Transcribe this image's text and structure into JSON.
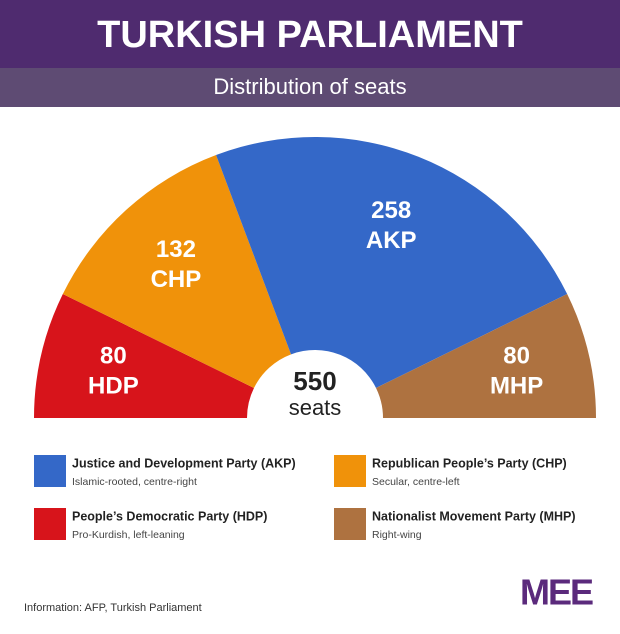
{
  "chart_data": {
    "type": "semicircle",
    "title": "TURKISH PARLIAMENT",
    "subtitle": "Distribution of seats",
    "total": 550,
    "total_label": "seats",
    "series": [
      {
        "name": "People’s Democratic Party (HDP)",
        "short": "HDP",
        "description": "Pro-Kurdish, left-leaning",
        "color": "#d7141b"
      },
      {
        "name": "Republican People’s Party (CHP)",
        "short": "CHP",
        "description": "Secular, centre-left",
        "color": "#f0920a"
      },
      {
        "name": "Justice and Development Party (AKP)",
        "short": "AKP",
        "description": "Islamic-rooted, centre-right",
        "color": "#3468c8"
      },
      {
        "name": "Nationalist Movement Party (MHP)",
        "short": "MHP",
        "description": "Right-wing",
        "color": "#ae7240"
      }
    ],
    "values": [
      80,
      132,
      258,
      80
    ],
    "source": "Information: AFP, Turkish Parliament",
    "logo": "MEE"
  }
}
